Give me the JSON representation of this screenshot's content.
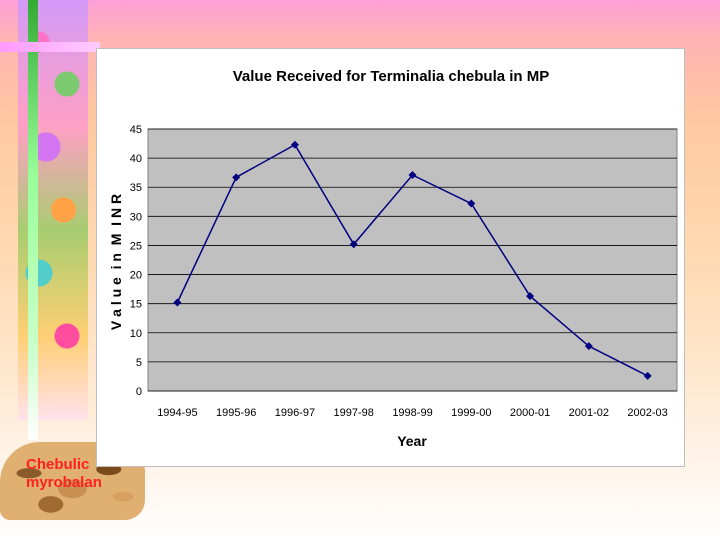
{
  "slide": {
    "caption_line1": "Chebulic",
    "caption_line2": "myrobalan"
  },
  "chart_data": {
    "type": "line",
    "title": "Value Received for Terminalia chebula in MP",
    "xlabel": "Year",
    "ylabel": "V a l u e  i n  M  I N R",
    "categories": [
      "1994-95",
      "1995-96",
      "1996-97",
      "1997-98",
      "1998-99",
      "1999-00",
      "2000-01",
      "2001-02",
      "2002-03"
    ],
    "series": [
      {
        "values": [
          15.2,
          36.7,
          42.3,
          25.2,
          37.1,
          32.2,
          16.3,
          7.7,
          2.6
        ]
      }
    ],
    "ylim": [
      0,
      45
    ],
    "yticks": [
      0,
      5,
      10,
      15,
      20,
      25,
      30,
      35,
      40,
      45
    ],
    "grid": true,
    "colors": {
      "line": "#000080",
      "plot_bg": "#c0c0c0",
      "gridline": "#000000"
    }
  }
}
